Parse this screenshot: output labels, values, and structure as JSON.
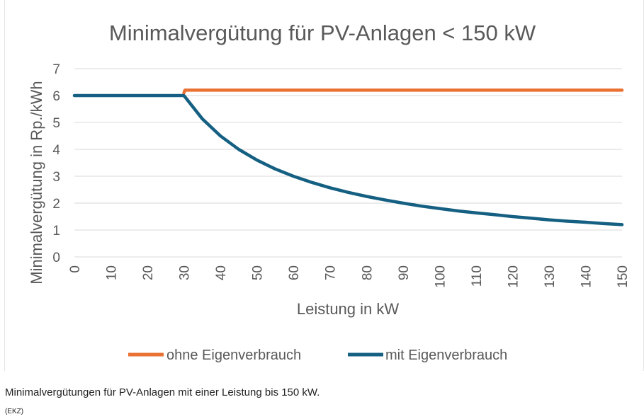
{
  "chart_data": {
    "type": "line",
    "title": "Minimalvergütung für PV-Anlagen < 150 kW",
    "xlabel": "Leistung in kW",
    "ylabel": "Minimalvergütung in Rp./kWh",
    "xlim": [
      0,
      150
    ],
    "ylim": [
      0,
      7
    ],
    "x_ticks": [
      "0",
      "10",
      "20",
      "30",
      "40",
      "50",
      "60",
      "70",
      "80",
      "90",
      "100",
      "110",
      "120",
      "130",
      "140",
      "150"
    ],
    "y_ticks": [
      "0",
      "1",
      "2",
      "3",
      "4",
      "5",
      "6",
      "7"
    ],
    "grid": "horizontal",
    "legend_position": "bottom",
    "series": [
      {
        "name": "ohne Eigenverbrauch",
        "color": "#E97132",
        "x": [
          30,
          30.3,
          150
        ],
        "y": [
          6.1,
          6.2,
          6.2
        ]
      },
      {
        "name": "mit Eigenverbrauch",
        "color": "#156082",
        "x": [
          0,
          30,
          35,
          40,
          45,
          50,
          55,
          60,
          65,
          70,
          75,
          80,
          85,
          90,
          95,
          100,
          105,
          110,
          115,
          120,
          125,
          130,
          135,
          140,
          145,
          150
        ],
        "y": [
          6.0,
          6.0,
          5.14,
          4.5,
          4.0,
          3.6,
          3.27,
          3.0,
          2.77,
          2.57,
          2.4,
          2.25,
          2.12,
          2.0,
          1.89,
          1.8,
          1.71,
          1.64,
          1.57,
          1.5,
          1.44,
          1.38,
          1.33,
          1.29,
          1.24,
          1.2
        ]
      }
    ]
  },
  "caption": "Minimalvergütungen für PV-Anlagen mit einer Leistung bis 150 kW.",
  "source": "(EKZ)"
}
